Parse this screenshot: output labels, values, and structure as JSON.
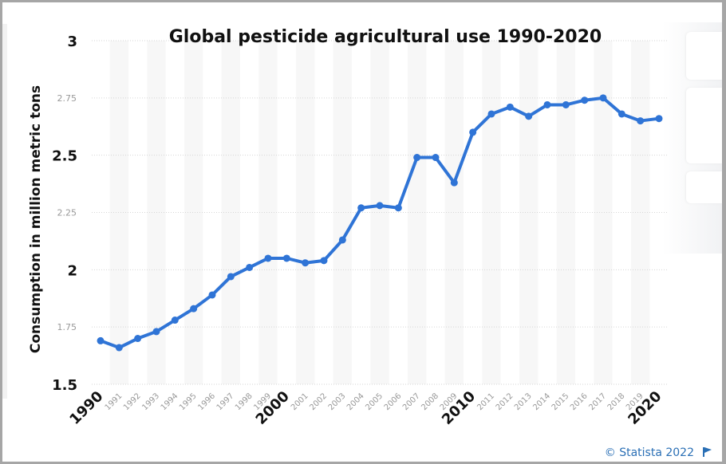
{
  "chart_data": {
    "type": "line",
    "title": "Global pesticide agricultural use 1990-2020",
    "xlabel": "",
    "ylabel": "Consumption in million metric tons",
    "x": [
      1990,
      1991,
      1992,
      1993,
      1994,
      1995,
      1996,
      1997,
      1998,
      1999,
      2000,
      2001,
      2002,
      2003,
      2004,
      2005,
      2006,
      2007,
      2008,
      2009,
      2010,
      2011,
      2012,
      2013,
      2014,
      2015,
      2016,
      2017,
      2018,
      2019,
      2020
    ],
    "series": [
      {
        "name": "Consumption",
        "color": "#2f74d6",
        "values": [
          1.69,
          1.66,
          1.7,
          1.73,
          1.78,
          1.83,
          1.89,
          1.97,
          2.01,
          2.05,
          2.05,
          2.03,
          2.04,
          2.13,
          2.27,
          2.28,
          2.27,
          2.49,
          2.49,
          2.38,
          2.6,
          2.68,
          2.71,
          2.67,
          2.72,
          2.72,
          2.74,
          2.75,
          2.68,
          2.65,
          2.66
        ]
      }
    ],
    "ylim": [
      1.5,
      3
    ],
    "yticks": [
      {
        "value": 1.5,
        "label": "1.5",
        "major": true
      },
      {
        "value": 1.75,
        "label": "1.75",
        "major": false
      },
      {
        "value": 2,
        "label": "2",
        "major": true
      },
      {
        "value": 2.25,
        "label": "2.25",
        "major": false
      },
      {
        "value": 2.5,
        "label": "2.5",
        "major": true
      },
      {
        "value": 2.75,
        "label": "2.75",
        "major": false
      },
      {
        "value": 3,
        "label": "3",
        "major": true
      }
    ],
    "xticks": [
      {
        "value": 1990,
        "label": "1990",
        "major": true
      },
      {
        "value": 1991,
        "label": "1991",
        "major": false
      },
      {
        "value": 1992,
        "label": "1992",
        "major": false
      },
      {
        "value": 1993,
        "label": "1993",
        "major": false
      },
      {
        "value": 1994,
        "label": "1994",
        "major": false
      },
      {
        "value": 1995,
        "label": "1995",
        "major": false
      },
      {
        "value": 1996,
        "label": "1996",
        "major": false
      },
      {
        "value": 1997,
        "label": "1997",
        "major": false
      },
      {
        "value": 1998,
        "label": "1998",
        "major": false
      },
      {
        "value": 1999,
        "label": "1999",
        "major": false
      },
      {
        "value": 2000,
        "label": "2000",
        "major": true
      },
      {
        "value": 2001,
        "label": "2001",
        "major": false
      },
      {
        "value": 2002,
        "label": "2002",
        "major": false
      },
      {
        "value": 2003,
        "label": "2003",
        "major": false
      },
      {
        "value": 2004,
        "label": "2004",
        "major": false
      },
      {
        "value": 2005,
        "label": "2005",
        "major": false
      },
      {
        "value": 2006,
        "label": "2006",
        "major": false
      },
      {
        "value": 2007,
        "label": "2007",
        "major": false
      },
      {
        "value": 2008,
        "label": "2008",
        "major": false
      },
      {
        "value": 2009,
        "label": "2009",
        "major": false
      },
      {
        "value": 2010,
        "label": "2010",
        "major": true
      },
      {
        "value": 2011,
        "label": "2011",
        "major": false
      },
      {
        "value": 2012,
        "label": "2012",
        "major": false
      },
      {
        "value": 2013,
        "label": "2013",
        "major": false
      },
      {
        "value": 2014,
        "label": "2014",
        "major": false
      },
      {
        "value": 2015,
        "label": "2015",
        "major": false
      },
      {
        "value": 2016,
        "label": "2016",
        "major": false
      },
      {
        "value": 2017,
        "label": "2017",
        "major": false
      },
      {
        "value": 2018,
        "label": "2018",
        "major": false
      },
      {
        "value": 2019,
        "label": "2019",
        "major": false
      },
      {
        "value": 2020,
        "label": "2020",
        "major": true
      }
    ],
    "grid": true,
    "legend": "none"
  },
  "footer": {
    "credit": "© Statista 2022",
    "flag_icon": "flag-icon",
    "accent": "#2a6fb5"
  }
}
